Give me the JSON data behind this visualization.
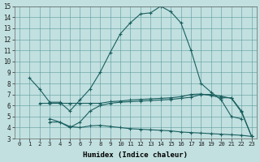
{
  "xlabel": "Humidex (Indice chaleur)",
  "bg_color": "#c2e0e0",
  "grid_color": "#5a9a9a",
  "line_color": "#1a5f5f",
  "xlim": [
    -0.5,
    23.5
  ],
  "ylim": [
    3,
    15
  ],
  "xticks": [
    0,
    1,
    2,
    3,
    4,
    5,
    6,
    7,
    8,
    9,
    10,
    11,
    12,
    13,
    14,
    15,
    16,
    17,
    18,
    19,
    20,
    21,
    22,
    23
  ],
  "yticks": [
    3,
    4,
    5,
    6,
    7,
    8,
    9,
    10,
    11,
    12,
    13,
    14,
    15
  ],
  "line1_x": [
    1,
    2,
    3,
    4,
    5,
    6,
    7,
    8,
    9,
    10,
    11,
    12,
    13,
    14,
    15,
    16,
    17,
    18,
    19,
    20,
    21,
    22
  ],
  "line1_y": [
    8.5,
    7.5,
    6.3,
    6.3,
    5.5,
    6.5,
    7.5,
    9.0,
    10.8,
    12.5,
    13.5,
    14.3,
    14.4,
    15.0,
    14.5,
    13.5,
    11.0,
    8.0,
    7.2,
    6.5,
    5.0,
    4.8
  ],
  "line2_x": [
    2,
    3,
    4,
    5,
    6,
    7,
    8,
    9,
    10,
    11,
    12,
    13,
    14,
    15,
    16,
    17,
    18,
    19,
    20,
    21,
    22,
    23
  ],
  "line2_y": [
    6.2,
    6.2,
    6.2,
    6.2,
    6.2,
    6.2,
    6.2,
    6.35,
    6.4,
    6.5,
    6.55,
    6.6,
    6.65,
    6.7,
    6.8,
    7.0,
    7.05,
    6.9,
    6.7,
    6.7,
    5.5,
    3.2
  ],
  "line3_x": [
    3,
    4,
    5,
    6,
    7,
    8,
    9,
    10,
    11,
    12,
    13,
    14,
    15,
    16,
    17,
    18,
    19,
    20,
    21,
    22,
    23
  ],
  "line3_y": [
    4.8,
    4.5,
    4.0,
    4.5,
    5.5,
    6.0,
    6.2,
    6.3,
    6.35,
    6.4,
    6.45,
    6.5,
    6.55,
    6.65,
    6.75,
    7.0,
    7.0,
    6.85,
    6.65,
    5.4,
    3.2
  ],
  "line4_x": [
    3,
    4,
    5,
    6,
    7,
    8,
    9,
    10,
    11,
    12,
    13,
    14,
    15,
    16,
    17,
    18,
    19,
    20,
    21,
    22,
    23
  ],
  "line4_y": [
    4.5,
    4.5,
    4.1,
    4.0,
    4.15,
    4.2,
    4.1,
    4.0,
    3.9,
    3.85,
    3.8,
    3.75,
    3.7,
    3.6,
    3.55,
    3.5,
    3.45,
    3.4,
    3.35,
    3.3,
    3.2
  ]
}
